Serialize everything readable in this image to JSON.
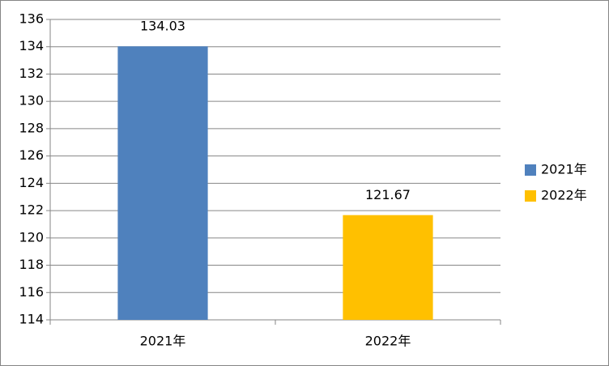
{
  "chart_data": {
    "type": "bar",
    "categories": [
      "2021年",
      "2022年"
    ],
    "values": [
      134.03,
      121.67
    ],
    "colors": [
      "#4f81bd",
      "#ffc000"
    ],
    "ylim": [
      114,
      136
    ],
    "yticks": [
      114,
      116,
      118,
      120,
      122,
      124,
      126,
      128,
      130,
      132,
      134,
      136
    ],
    "grid": true,
    "legend": "right"
  }
}
